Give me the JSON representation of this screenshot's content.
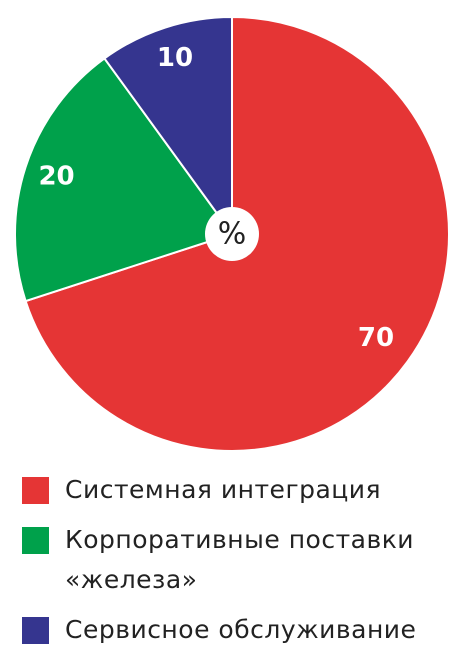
{
  "chart_data": {
    "type": "pie",
    "center_label": "%",
    "categories": [
      "Системная интеграция",
      "Корпоративные поставки «железа»",
      "Сервисное обслуживание"
    ],
    "values": [
      70,
      20,
      10
    ],
    "colors": [
      "#e53535",
      "#00a14b",
      "#35358f"
    ]
  }
}
